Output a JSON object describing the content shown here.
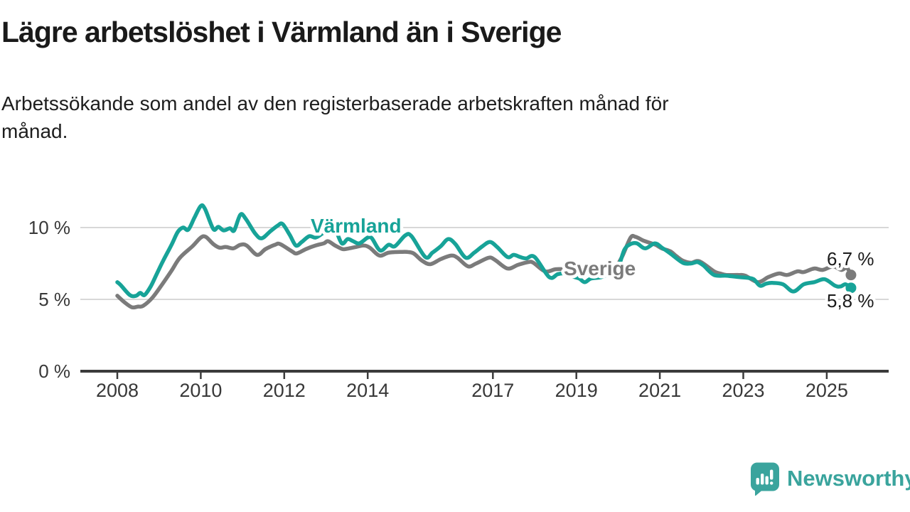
{
  "header": {
    "title": "Lägre arbetslöshet i Värmland än i Sverige",
    "subtitle": "Arbetssökande som andel av den registerbaserade arbetskraften månad för\nmånad."
  },
  "chart_data": {
    "type": "line",
    "title": "Lägre arbetslöshet i Värmland än i Sverige",
    "subtitle": "Arbetssökande som andel av den registerbaserade arbetskraften månad för månad.",
    "xlabel": "",
    "ylabel": "",
    "unit": "%",
    "grid": "horizontal-only",
    "legend_position": "inline-labels",
    "xlim": [
      2007.1,
      2026.5
    ],
    "ylim": [
      0,
      12.4
    ],
    "x_ticks": [
      {
        "value": 2008,
        "label": "2008"
      },
      {
        "value": 2010,
        "label": "2010"
      },
      {
        "value": 2012,
        "label": "2012"
      },
      {
        "value": 2014,
        "label": "2014"
      },
      {
        "value": 2017,
        "label": "2017"
      },
      {
        "value": 2019,
        "label": "2019"
      },
      {
        "value": 2021,
        "label": "2021"
      },
      {
        "value": 2023,
        "label": "2023"
      },
      {
        "value": 2025,
        "label": "2025"
      }
    ],
    "y_ticks": [
      {
        "value": 10,
        "label": "10 %"
      },
      {
        "value": 5,
        "label": "5 %"
      },
      {
        "value": 0,
        "label": "0 %"
      }
    ],
    "series": [
      {
        "name": "Värmland",
        "color": "#17a398",
        "end_value": 5.8,
        "end_label": "5,8 %",
        "points": [
          [
            2008.0,
            6.2
          ],
          [
            2008.08,
            6.0
          ],
          [
            2008.3,
            5.3
          ],
          [
            2008.45,
            5.25
          ],
          [
            2008.55,
            5.45
          ],
          [
            2008.65,
            5.3
          ],
          [
            2008.8,
            5.9
          ],
          [
            2008.95,
            6.8
          ],
          [
            2009.1,
            7.7
          ],
          [
            2009.3,
            8.8
          ],
          [
            2009.45,
            9.7
          ],
          [
            2009.58,
            10.0
          ],
          [
            2009.7,
            9.85
          ],
          [
            2009.85,
            10.7
          ],
          [
            2010.0,
            11.5
          ],
          [
            2010.1,
            11.3
          ],
          [
            2010.3,
            9.9
          ],
          [
            2010.42,
            10.05
          ],
          [
            2010.55,
            9.8
          ],
          [
            2010.7,
            9.95
          ],
          [
            2010.8,
            9.8
          ],
          [
            2010.95,
            10.9
          ],
          [
            2011.08,
            10.6
          ],
          [
            2011.3,
            9.6
          ],
          [
            2011.46,
            9.25
          ],
          [
            2011.67,
            9.75
          ],
          [
            2011.85,
            10.15
          ],
          [
            2011.96,
            10.25
          ],
          [
            2012.13,
            9.5
          ],
          [
            2012.28,
            8.75
          ],
          [
            2012.42,
            9.0
          ],
          [
            2012.6,
            9.4
          ],
          [
            2012.75,
            9.3
          ],
          [
            2012.92,
            9.6
          ],
          [
            2013.1,
            9.95
          ],
          [
            2013.22,
            9.9
          ],
          [
            2013.38,
            8.9
          ],
          [
            2013.52,
            9.2
          ],
          [
            2013.65,
            9.05
          ],
          [
            2013.8,
            8.9
          ],
          [
            2014.0,
            9.3
          ],
          [
            2014.1,
            9.25
          ],
          [
            2014.3,
            8.4
          ],
          [
            2014.5,
            8.8
          ],
          [
            2014.65,
            8.7
          ],
          [
            2014.9,
            9.45
          ],
          [
            2015.05,
            9.4
          ],
          [
            2015.38,
            7.95
          ],
          [
            2015.55,
            8.25
          ],
          [
            2015.75,
            8.7
          ],
          [
            2015.93,
            9.2
          ],
          [
            2016.1,
            8.85
          ],
          [
            2016.35,
            7.9
          ],
          [
            2016.55,
            8.25
          ],
          [
            2016.75,
            8.7
          ],
          [
            2016.93,
            9.0
          ],
          [
            2017.1,
            8.65
          ],
          [
            2017.35,
            7.95
          ],
          [
            2017.5,
            8.1
          ],
          [
            2017.65,
            7.95
          ],
          [
            2017.8,
            7.85
          ],
          [
            2018.0,
            7.95
          ],
          [
            2018.35,
            6.55
          ],
          [
            2018.55,
            6.75
          ],
          [
            2018.7,
            6.8
          ],
          [
            2018.9,
            6.6
          ],
          [
            2019.07,
            6.45
          ],
          [
            2019.2,
            6.2
          ],
          [
            2019.35,
            6.45
          ],
          [
            2019.6,
            6.55
          ],
          [
            2019.85,
            6.9
          ],
          [
            2020.0,
            7.2
          ],
          [
            2020.15,
            8.45
          ],
          [
            2020.3,
            8.85
          ],
          [
            2020.45,
            8.9
          ],
          [
            2020.65,
            8.55
          ],
          [
            2020.88,
            8.9
          ],
          [
            2021.05,
            8.6
          ],
          [
            2021.25,
            8.2
          ],
          [
            2021.55,
            7.55
          ],
          [
            2021.75,
            7.5
          ],
          [
            2021.9,
            7.6
          ],
          [
            2022.05,
            7.35
          ],
          [
            2022.3,
            6.7
          ],
          [
            2022.6,
            6.65
          ],
          [
            2022.9,
            6.55
          ],
          [
            2023.1,
            6.5
          ],
          [
            2023.25,
            6.4
          ],
          [
            2023.4,
            5.95
          ],
          [
            2023.55,
            6.1
          ],
          [
            2023.7,
            6.15
          ],
          [
            2023.95,
            6.05
          ],
          [
            2024.2,
            5.55
          ],
          [
            2024.45,
            6.05
          ],
          [
            2024.7,
            6.2
          ],
          [
            2024.95,
            6.4
          ],
          [
            2025.2,
            5.95
          ],
          [
            2025.33,
            5.9
          ],
          [
            2025.45,
            6.05
          ],
          [
            2025.58,
            5.8
          ]
        ]
      },
      {
        "name": "Sverige",
        "color": "#7b7b7b",
        "end_value": 6.7,
        "end_label": "6,7 %",
        "points": [
          [
            2008.0,
            5.25
          ],
          [
            2008.17,
            4.8
          ],
          [
            2008.35,
            4.45
          ],
          [
            2008.5,
            4.5
          ],
          [
            2008.62,
            4.55
          ],
          [
            2008.85,
            5.15
          ],
          [
            2009.1,
            6.15
          ],
          [
            2009.3,
            7.0
          ],
          [
            2009.5,
            7.9
          ],
          [
            2009.8,
            8.7
          ],
          [
            2010.0,
            9.3
          ],
          [
            2010.12,
            9.35
          ],
          [
            2010.3,
            8.85
          ],
          [
            2010.45,
            8.6
          ],
          [
            2010.6,
            8.65
          ],
          [
            2010.78,
            8.55
          ],
          [
            2010.95,
            8.8
          ],
          [
            2011.1,
            8.75
          ],
          [
            2011.35,
            8.1
          ],
          [
            2011.55,
            8.5
          ],
          [
            2011.78,
            8.8
          ],
          [
            2011.9,
            8.85
          ],
          [
            2012.18,
            8.35
          ],
          [
            2012.3,
            8.2
          ],
          [
            2012.52,
            8.5
          ],
          [
            2012.75,
            8.75
          ],
          [
            2012.95,
            8.9
          ],
          [
            2013.05,
            9.05
          ],
          [
            2013.22,
            8.75
          ],
          [
            2013.4,
            8.5
          ],
          [
            2013.55,
            8.55
          ],
          [
            2013.72,
            8.65
          ],
          [
            2013.9,
            8.75
          ],
          [
            2014.05,
            8.6
          ],
          [
            2014.28,
            8.05
          ],
          [
            2014.5,
            8.25
          ],
          [
            2014.78,
            8.3
          ],
          [
            2014.95,
            8.3
          ],
          [
            2015.1,
            8.2
          ],
          [
            2015.3,
            7.7
          ],
          [
            2015.5,
            7.45
          ],
          [
            2015.75,
            7.8
          ],
          [
            2016.0,
            8.05
          ],
          [
            2016.15,
            7.9
          ],
          [
            2016.4,
            7.3
          ],
          [
            2016.6,
            7.5
          ],
          [
            2016.9,
            7.9
          ],
          [
            2017.05,
            7.75
          ],
          [
            2017.35,
            7.15
          ],
          [
            2017.6,
            7.4
          ],
          [
            2017.85,
            7.6
          ],
          [
            2017.97,
            7.55
          ],
          [
            2018.25,
            6.95
          ],
          [
            2018.5,
            7.1
          ],
          [
            2018.7,
            7.1
          ],
          [
            2018.9,
            7.05
          ],
          [
            2019.2,
            7.0
          ],
          [
            2019.5,
            7.0
          ],
          [
            2019.75,
            7.1
          ],
          [
            2019.95,
            7.3
          ],
          [
            2020.1,
            8.0
          ],
          [
            2020.3,
            9.3
          ],
          [
            2020.42,
            9.35
          ],
          [
            2020.6,
            9.1
          ],
          [
            2020.75,
            8.95
          ],
          [
            2020.9,
            8.8
          ],
          [
            2021.05,
            8.55
          ],
          [
            2021.25,
            8.35
          ],
          [
            2021.4,
            8.0
          ],
          [
            2021.55,
            7.7
          ],
          [
            2021.75,
            7.55
          ],
          [
            2021.95,
            7.65
          ],
          [
            2022.3,
            6.95
          ],
          [
            2022.45,
            6.8
          ],
          [
            2022.6,
            6.7
          ],
          [
            2022.9,
            6.7
          ],
          [
            2023.05,
            6.65
          ],
          [
            2023.35,
            6.2
          ],
          [
            2023.6,
            6.55
          ],
          [
            2023.85,
            6.8
          ],
          [
            2024.05,
            6.7
          ],
          [
            2024.3,
            6.95
          ],
          [
            2024.45,
            6.9
          ],
          [
            2024.7,
            7.15
          ],
          [
            2024.9,
            7.05
          ],
          [
            2025.15,
            7.3
          ],
          [
            2025.35,
            7.05
          ],
          [
            2025.48,
            7.2
          ],
          [
            2025.58,
            6.7
          ]
        ]
      }
    ]
  },
  "branding": {
    "name": "Newsworthy",
    "color": "#3aa49d",
    "icon": "bar-chart-speech-bubble-icon"
  }
}
